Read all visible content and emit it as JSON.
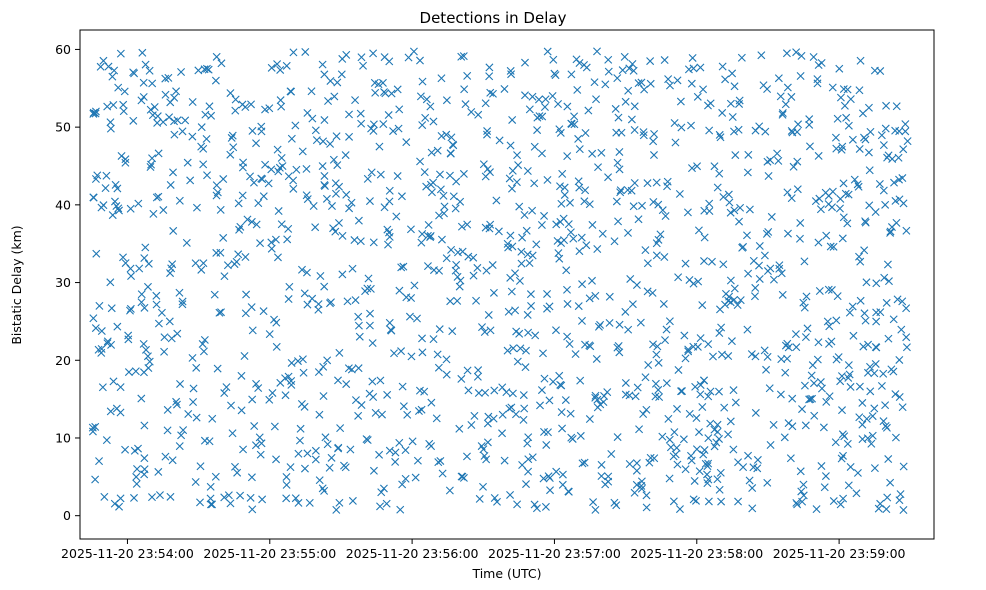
{
  "chart_data": {
    "type": "scatter",
    "title": "Detections in Delay",
    "xlabel": "Time (UTC)",
    "ylabel": "Bistatic Delay (km)",
    "marker": "x",
    "color": "#1f77b4",
    "x_unit": "seconds since 2025-11-20 23:54:00",
    "xlim": [
      -20,
      340
    ],
    "ylim": [
      -3,
      62.5
    ],
    "x_ticks": [
      0,
      60,
      120,
      180,
      240,
      300
    ],
    "x_tick_labels": [
      "2025-11-20 23:54:00",
      "2025-11-20 23:55:00",
      "2025-11-20 23:56:00",
      "2025-11-20 23:57:00",
      "2025-11-20 23:58:00",
      "2025-11-20 23:59:00"
    ],
    "y_ticks": [
      0,
      10,
      20,
      30,
      40,
      50,
      60
    ],
    "y_tick_labels": [
      "0",
      "10",
      "20",
      "30",
      "40",
      "50",
      "60"
    ],
    "series": [
      {
        "name": "detections",
        "generator": "uniform random scatter",
        "count": 1500,
        "x_range": [
          -15,
          329
        ],
        "y_range": [
          0.7,
          59.8
        ],
        "seed": 12345
      }
    ]
  }
}
